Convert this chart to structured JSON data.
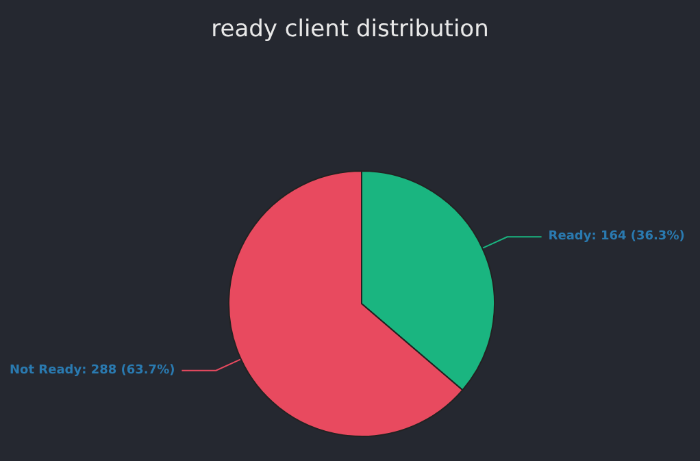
{
  "chart_data": {
    "type": "pie",
    "title": "ready client distribution",
    "categories": [
      "Ready",
      "Not Ready"
    ],
    "values": [
      164,
      288
    ],
    "value_labels": [
      "164 (36.3%)",
      "288 (63.7%)"
    ],
    "colors": [
      "#1ab580",
      "#e84a5f"
    ],
    "legend": false
  }
}
